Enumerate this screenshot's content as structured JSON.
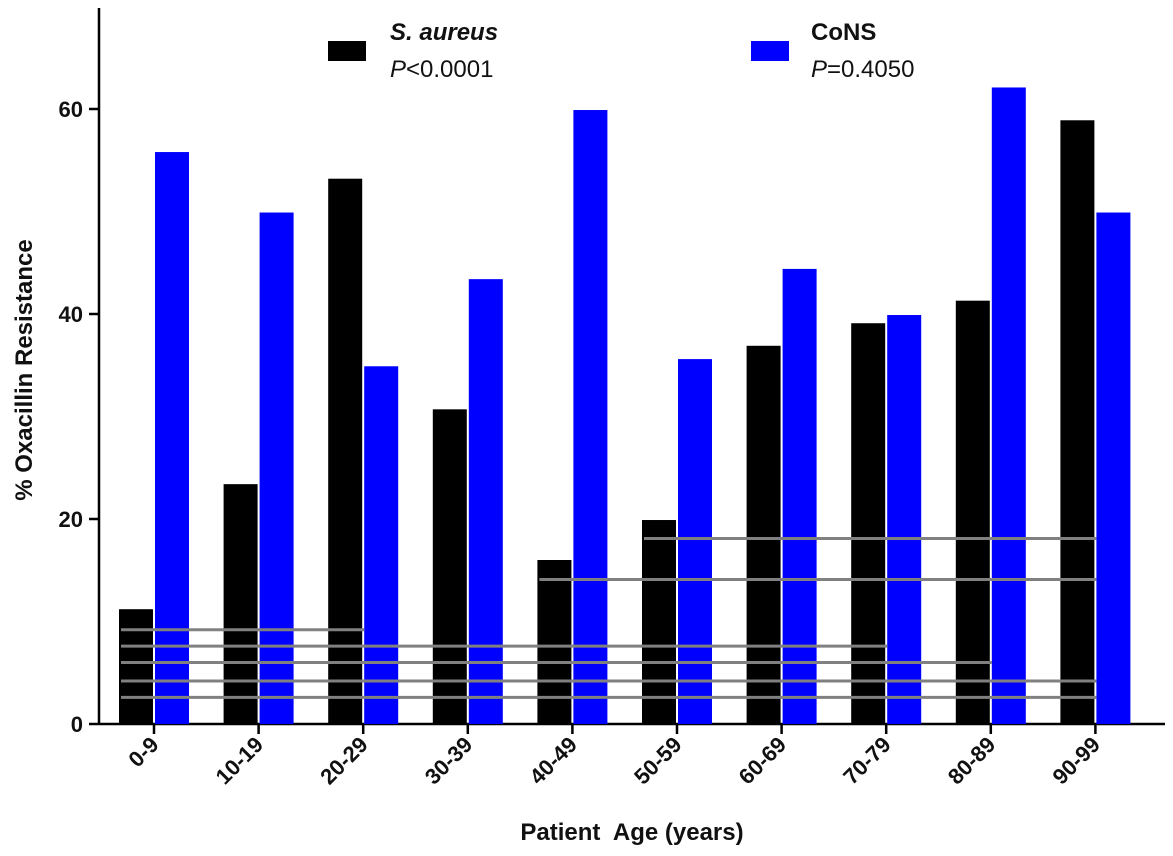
{
  "chart_data": {
    "type": "bar",
    "title": "",
    "xlabel": "Patient  Age (years)",
    "ylabel": "% Oxacillin Resistance",
    "ylim": [
      0,
      70
    ],
    "yticks": [
      "0",
      "20",
      "40",
      "60"
    ],
    "categories": [
      "0-9",
      "10-19",
      "20-29",
      "30-39",
      "40-49",
      "50-59",
      "60-69",
      "70-79",
      "80-89",
      "90-99"
    ],
    "series": [
      {
        "name": "S. aureus",
        "stat_prefix": "P",
        "stat_value": "<0.0001",
        "color": "#000000",
        "values": [
          11.2,
          23.4,
          53.2,
          30.7,
          16.0,
          19.9,
          36.9,
          39.1,
          41.3,
          58.9
        ]
      },
      {
        "name": "CoNS",
        "stat_prefix": "P",
        "stat_value": "=0.4050",
        "color": "#0000ff",
        "values": [
          55.8,
          49.9,
          34.9,
          43.4,
          59.9,
          35.6,
          44.4,
          39.9,
          62.1,
          49.9
        ]
      }
    ],
    "significance_lines": [
      {
        "from": "0-9",
        "to": "20-29",
        "y": 9.2
      },
      {
        "from": "0-9",
        "to": "70-79",
        "y": 7.6
      },
      {
        "from": "0-9",
        "to": "80-89",
        "y": 6.0
      },
      {
        "from": "0-9",
        "to": "90-99",
        "y": 4.2
      },
      {
        "from": "0-9",
        "to": "90-99",
        "y": 2.6
      },
      {
        "from": "40-49",
        "to": "90-99",
        "y": 14.1
      },
      {
        "from": "50-59",
        "to": "90-99",
        "y": 18.1
      }
    ],
    "line_color": "#808080",
    "grid": false,
    "legend_position": "top"
  }
}
